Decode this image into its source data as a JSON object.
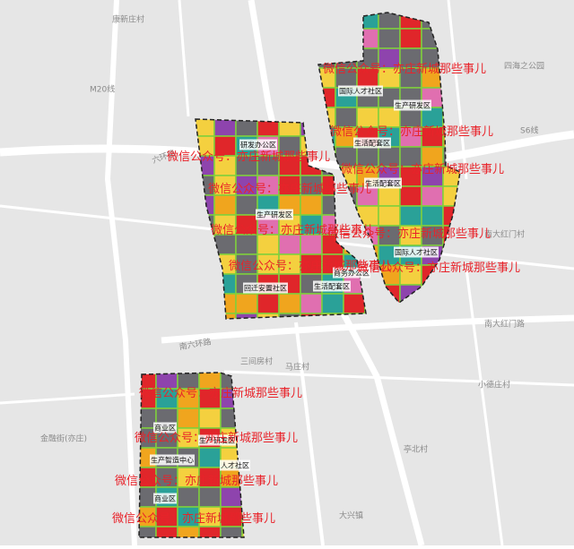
{
  "map": {
    "place_labels": [
      "康新庄村",
      "四海之公园",
      "三间房村",
      "马庄村",
      "小德庄村",
      "金融街(亦庄)",
      "大兴镇",
      "亭北村",
      "南大红门村"
    ],
    "road_labels": [
      "M20线",
      "S6线",
      "六环路",
      "南六环路",
      "南大红门路"
    ],
    "zones": [
      "研发办公区",
      "生产研发区",
      "回迁安置社区",
      "生活配套区",
      "商务办公区",
      "国际人才社区",
      "生产研发区",
      "生活配套区",
      "生活配套区",
      "国际人才社区",
      "商业区",
      "生产智造中心",
      "商业区",
      "生产研发区",
      "人才社区"
    ],
    "watermark": "微信公众号：亦庄新城那些事儿"
  }
}
